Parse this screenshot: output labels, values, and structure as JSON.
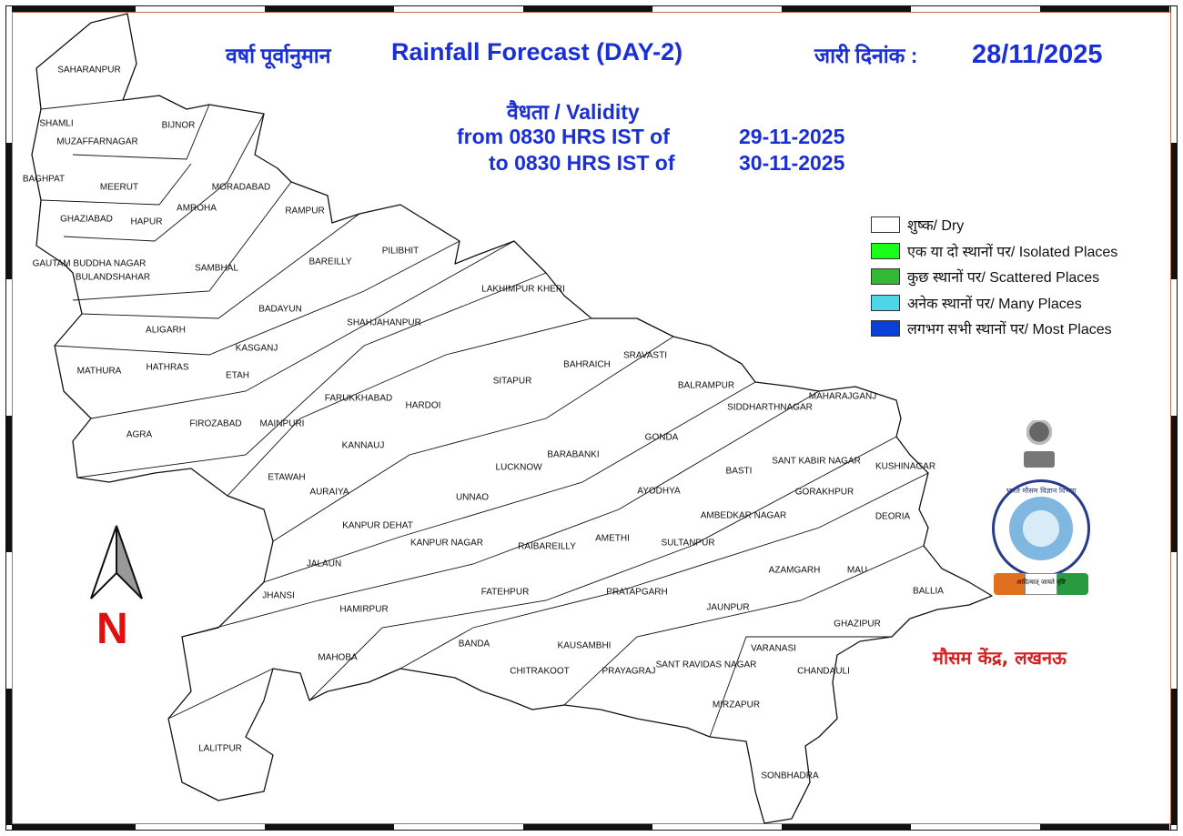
{
  "header": {
    "title_hindi": "वर्षा पूर्वानुमान",
    "title_english": "Rainfall Forecast (DAY-2)",
    "issue_label": "जारी दिनांक :",
    "issue_date": "28/11/2025",
    "validity_label": "वैधता / Validity",
    "from_label": "from 0830 HRS IST of",
    "from_date": "29-11-2025",
    "to_label": "to 0830 HRS IST of",
    "to_date": "30-11-2025"
  },
  "legend": [
    {
      "label": "शुष्क/ Dry",
      "color": "#ffffff"
    },
    {
      "label": "एक या दो स्थानों पर/ Isolated Places",
      "color": "#1aff1a"
    },
    {
      "label": "कुछ स्थानों पर/ Scattered Places",
      "color": "#33b833"
    },
    {
      "label": "अनेक स्थानों पर/ Many Places",
      "color": "#4fd6e6"
    },
    {
      "label": "लगभग सभी स्थानों पर/ Most Places",
      "color": "#0a3fd9"
    }
  ],
  "districts": [
    "SAHARANPUR",
    "SHAMLI",
    "MUZAFFARNAGAR",
    "BIJNOR",
    "BAGHPAT",
    "MEERUT",
    "MORADABAD",
    "RAMPUR",
    "AMROHA",
    "GHAZIABAD",
    "HAPUR",
    "GAUTAM BUDDHA NAGAR",
    "BULANDSHAHAR",
    "SAMBHAL",
    "BAREILLY",
    "PILIBHIT",
    "LAKHIMPUR KHERI",
    "BADAYUN",
    "SHAHJAHANPUR",
    "ALIGARH",
    "KASGANJ",
    "MATHURA",
    "HATHRAS",
    "ETAH",
    "FARUKKHABAD",
    "HARDOI",
    "SITAPUR",
    "BAHRAICH",
    "SRAVASTI",
    "BALRAMPUR",
    "SIDDHARTHNAGAR",
    "MAHARAJGANJ",
    "AGRA",
    "FIROZABAD",
    "MAINPURI",
    "KANNAUJ",
    "GONDA",
    "BARABANKI",
    "LUCKNOW",
    "BASTI",
    "SANT KABIR NAGAR",
    "KUSHINAGAR",
    "ETAWAH",
    "AURAIYA",
    "UNNAO",
    "AYODHYA",
    "GORAKHPUR",
    "AMBEDKAR NAGAR",
    "DEORIA",
    "KANPUR DEHAT",
    "KANPUR NAGAR",
    "RAIBAREILLY",
    "AMETHI",
    "SULTANPUR",
    "JALAUN",
    "AZAMGARH",
    "MAU",
    "FATEHPUR",
    "PRATAPGARH",
    "BALLIA",
    "JHANSI",
    "HAMIRPUR",
    "JAUNPUR",
    "GHAZIPUR",
    "BANDA",
    "KAUSAMBHI",
    "MAHOBA",
    "CHITRAKOOT",
    "PRAYAGRAJ",
    "SANT RAVIDAS NAGAR",
    "VARANASI",
    "CHANDAULI",
    "MIRZAPUR",
    "LALITPUR",
    "SONBHADRA"
  ],
  "forecast": "Dry",
  "north_label": "N",
  "footer": "मौसम केंद्र, लखनऊ",
  "logo": {
    "text": "भारत मौसम विज्ञान विभाग",
    "motto": "आदित्यात् जायते वृष्टि"
  }
}
